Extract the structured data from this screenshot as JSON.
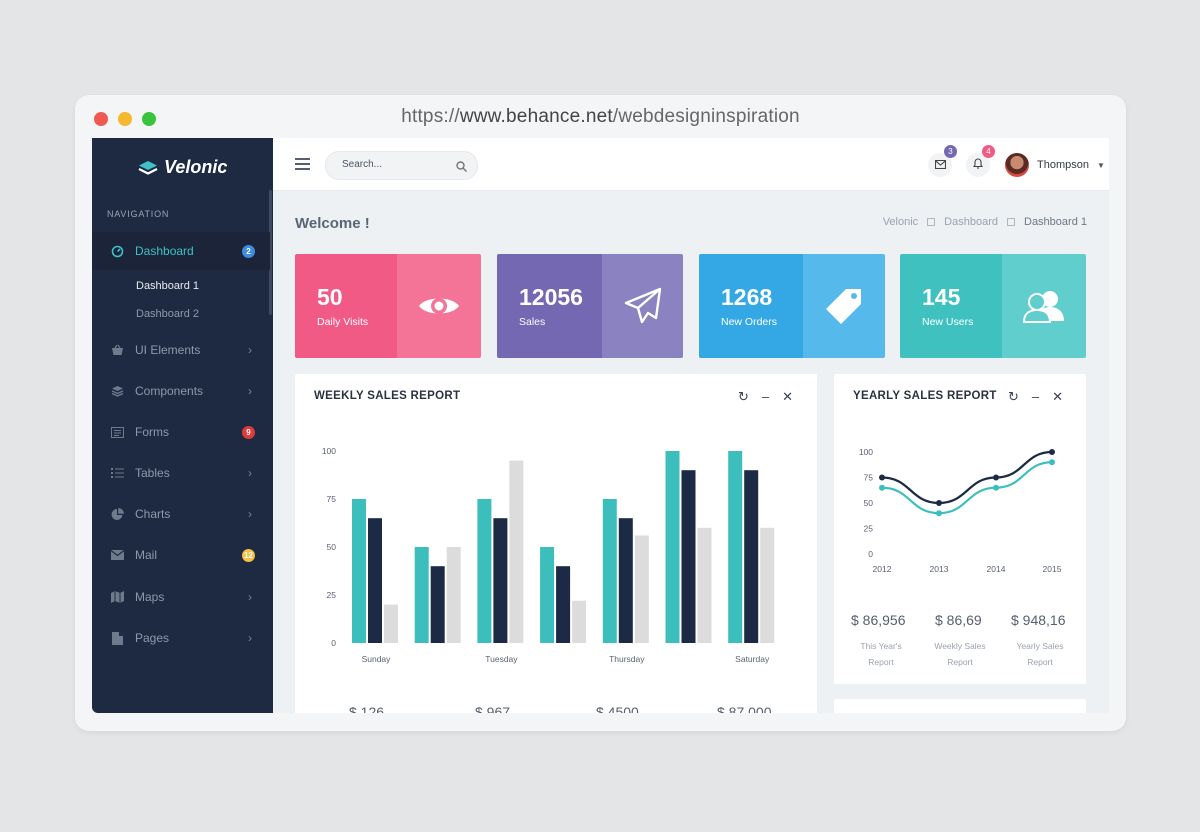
{
  "browser": {
    "url_prefix": "https://",
    "url_host": "www.behance.net",
    "url_path": "/webdesigninspiration"
  },
  "app": {
    "name": "Velonic"
  },
  "sidebar": {
    "section_title": "NAVIGATION",
    "items": [
      {
        "label": "Dashboard",
        "icon": "dashboard-icon",
        "badge": "2",
        "badge_color": "#3f8ddf",
        "active": true
      },
      {
        "label": "UI Elements",
        "icon": "basket-icon"
      },
      {
        "label": "Components",
        "icon": "layers-icon"
      },
      {
        "label": "Forms",
        "icon": "form-icon",
        "badge": "9",
        "badge_color": "#e03b3b"
      },
      {
        "label": "Tables",
        "icon": "list-icon"
      },
      {
        "label": "Charts",
        "icon": "pie-chart-icon"
      },
      {
        "label": "Mail",
        "icon": "mail-icon",
        "badge": "12",
        "badge_color": "#f5c043"
      },
      {
        "label": "Maps",
        "icon": "map-icon"
      },
      {
        "label": "Pages",
        "icon": "page-icon"
      }
    ],
    "submenu": [
      "Dashboard 1",
      "Dashboard 2"
    ]
  },
  "topbar": {
    "search_placeholder": "Search...",
    "mail_count": "3",
    "notif_count": "4",
    "user_name": "Thompson"
  },
  "page": {
    "title": "Welcome !",
    "breadcrumbs": [
      "Velonic",
      "Dashboard",
      "Dashboard 1"
    ]
  },
  "stats": [
    {
      "value": "50",
      "label": "Daily Visits",
      "icon": "eye-icon",
      "color_left": "#f25a86",
      "color_right": "#f47498"
    },
    {
      "value": "12056",
      "label": "Sales",
      "icon": "paper-plane-icon",
      "color_left": "#7468b3",
      "color_right": "#8b82c1"
    },
    {
      "value": "1268",
      "label": "New Orders",
      "icon": "tag-icon",
      "color_left": "#33a8e4",
      "color_right": "#55baeb"
    },
    {
      "value": "145",
      "label": "New Users",
      "icon": "users-icon",
      "color_left": "#3fc1c0",
      "color_right": "#5fcecd"
    }
  ],
  "weekly": {
    "title": "WEEKLY SALES REPORT",
    "footer_values": [
      "$ 126",
      "$ 967",
      "$ 4500",
      "$ 87,000"
    ]
  },
  "yearly": {
    "title": "YEARLY SALES REPORT",
    "footer": [
      {
        "value": "$ 86,956",
        "label1": "This Year's",
        "label2": "Report"
      },
      {
        "value": "$ 86,69",
        "label1": "Weekly Sales",
        "label2": "Report"
      },
      {
        "value": "$ 948,16",
        "label1": "Yearly Sales",
        "label2": "Report"
      }
    ]
  },
  "chart_data": [
    {
      "type": "bar",
      "title": "WEEKLY SALES REPORT",
      "categories": [
        "Sunday",
        "",
        "Tuesday",
        "",
        "Thursday",
        "",
        "Saturday"
      ],
      "ylim": [
        0,
        100
      ],
      "yticks": [
        0,
        25,
        50,
        75,
        100
      ],
      "series": [
        {
          "values": [
            75,
            50,
            75,
            50,
            75,
            100,
            100
          ],
          "color": "#3cbfbc"
        },
        {
          "values": [
            65,
            40,
            65,
            40,
            65,
            90,
            90
          ],
          "color": "#1c2a45"
        },
        {
          "values": [
            20,
            50,
            95,
            22,
            56,
            60,
            60
          ],
          "color": "#dcdcdc"
        }
      ]
    },
    {
      "type": "line",
      "title": "YEARLY SALES REPORT",
      "x": [
        "2012",
        "2013",
        "2014",
        "2015"
      ],
      "ylim": [
        0,
        100
      ],
      "yticks": [
        0,
        25,
        50,
        75,
        100
      ],
      "series": [
        {
          "values": [
            75,
            50,
            75,
            100
          ],
          "color": "#1c2a45"
        },
        {
          "values": [
            65,
            40,
            65,
            90
          ],
          "color": "#3cbfbc"
        }
      ]
    }
  ]
}
